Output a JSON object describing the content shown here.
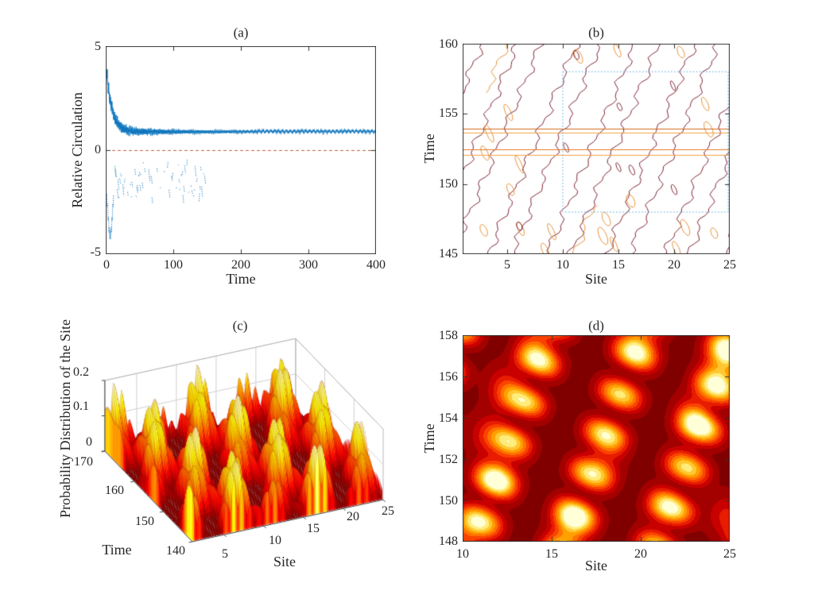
{
  "figure": {
    "background": "#ffffff",
    "axis_color": "#262626",
    "box_color": "#333333",
    "description": "Four-panel scientific figure: relative circulation time series, vortex-trajectory contour map, 3D probability-distribution surface, and filled contour zoom"
  },
  "panels": {
    "a": {
      "title": "(a)",
      "xlabel": "Time",
      "ylabel": "Relative Circulation",
      "xticks": [
        "0",
        "100",
        "200",
        "300",
        "400"
      ],
      "yticks": [
        "5",
        "0",
        "-5"
      ]
    },
    "b": {
      "title": "(b)",
      "xlabel": "Site",
      "ylabel": "Time",
      "xticks": [
        "5",
        "10",
        "15",
        "20",
        "25"
      ],
      "yticks": [
        "160",
        "155",
        "150",
        "145"
      ]
    },
    "c": {
      "title": "(c)",
      "zlabel": "Probability Distribution of the Site",
      "time_label": "Time",
      "site_label": "Site",
      "zticks": [
        "0.2",
        "0.1",
        "0"
      ],
      "time_ticks": [
        "170",
        "160",
        "150",
        "140"
      ],
      "site_ticks": [
        "5",
        "10",
        "15",
        "20",
        "25"
      ]
    },
    "d": {
      "title": "(d)",
      "xlabel": "Site",
      "ylabel": "Time",
      "xticks": [
        "10",
        "15",
        "20",
        "25"
      ],
      "yticks": [
        "158",
        "156",
        "154",
        "152",
        "150",
        "148"
      ]
    }
  },
  "chart_data": [
    {
      "id": "a",
      "type": "line",
      "title": "(a)",
      "xlabel": "Time",
      "ylabel": "Relative Circulation",
      "xlim": [
        0,
        400
      ],
      "ylim": [
        -5,
        5
      ],
      "xticks": [
        0,
        100,
        200,
        300,
        400
      ],
      "yticks": [
        -5,
        0,
        5
      ],
      "grid": false,
      "series": [
        {
          "name": "relative_circulation_upper",
          "color": "#0f76bd",
          "style": "noisy line",
          "description": "decays from ~4.2 at t=2 to a noisy plateau ~0.9 with small periodic scallops after t=200",
          "keypoints": [
            [
              2,
              4.2
            ],
            [
              6,
              3.0
            ],
            [
              12,
              1.6
            ],
            [
              20,
              1.35
            ],
            [
              50,
              1.25
            ],
            [
              100,
              1.05
            ],
            [
              150,
              0.95
            ],
            [
              200,
              0.9
            ],
            [
              300,
              0.88
            ],
            [
              400,
              0.9
            ]
          ]
        },
        {
          "name": "relative_circulation_negative_branch",
          "color": "#0f76bd",
          "style": "sparse dotted",
          "description": "initial dip from -2.3 to -4.1 over t=2-11, then sparse dotted band between -0.9 and -2.4 ending near t=160",
          "keypoints": [
            [
              2,
              -2.3
            ],
            [
              7,
              -4.1
            ],
            [
              11,
              -2.6
            ],
            [
              30,
              -1.6
            ],
            [
              80,
              -1.4
            ],
            [
              120,
              -1.3
            ],
            [
              158,
              -1.1
            ]
          ]
        }
      ],
      "reference_line": {
        "y": 0,
        "style": "dashed",
        "color": "#c0604f"
      }
    },
    {
      "id": "b",
      "type": "contour",
      "title": "(b)",
      "xlabel": "Site",
      "ylabel": "Time",
      "xlim": [
        1,
        25
      ],
      "ylim": [
        145,
        160
      ],
      "xticks": [
        5,
        10,
        15,
        20,
        25
      ],
      "yticks": [
        145,
        150,
        155,
        160
      ],
      "dark_contour_color": "#7e2433",
      "orange_contour_color": "#e6913a",
      "band_slope_sites_per_time": 0.53,
      "band_spacing_sites": 5.3,
      "band_halfwidth_sites": 1.6,
      "band_bases": [
        -3.6,
        1.7,
        7.0,
        12.3,
        17.6,
        22.9,
        28.2
      ],
      "horizontal_lines": [
        {
          "time": 153.95,
          "color": "#d2691e"
        },
        {
          "time": 153.65,
          "color": "#f0a040"
        },
        {
          "time": 152.45,
          "color": "#e07820"
        },
        {
          "time": 152.05,
          "color": "#f0a040"
        }
      ],
      "orange_blobs": [
        [
          3,
          152.2
        ],
        [
          3.4,
          153.6
        ],
        [
          5.1,
          155.1
        ],
        [
          5.3,
          149.6
        ],
        [
          6.1,
          151.4
        ],
        [
          9,
          146.6
        ],
        [
          8.4,
          145.3
        ],
        [
          13.6,
          146.3
        ],
        [
          13.9,
          147.5
        ],
        [
          14.6,
          145.7
        ],
        [
          16.1,
          148.8
        ],
        [
          21,
          146.9
        ],
        [
          20.2,
          145.4
        ],
        [
          23.1,
          153.9
        ],
        [
          22.8,
          155.7
        ],
        [
          20.6,
          159.4
        ],
        [
          14.9,
          159.5
        ],
        [
          11.4,
          159.1
        ],
        [
          23.6,
          146.5
        ],
        [
          2.9,
          146.7
        ],
        [
          6.2,
          146.8
        ]
      ],
      "dark_blobs": [
        [
          15.1,
          155.5
        ],
        [
          16.2,
          151.0
        ],
        [
          15.0,
          151.2
        ],
        [
          10.3,
          152.6
        ],
        [
          20.0,
          149.6
        ],
        [
          6.1,
          147.0
        ],
        [
          11.2,
          159.2
        ],
        [
          19.9,
          157.0
        ]
      ],
      "orange_diagonals": [
        {
          "base": -3.0,
          "t_range": [
            156.5,
            160
          ]
        },
        {
          "base": 24.0,
          "t_range": [
            151,
            157
          ]
        },
        {
          "base": -4.2,
          "t_range": [
            145,
            148
          ]
        },
        {
          "base": 11.0,
          "t_range": [
            145,
            148.5
          ]
        }
      ],
      "highlight_rect": {
        "site": [
          10,
          25
        ],
        "time": [
          148,
          158
        ],
        "color": "#4ea6dc",
        "style": "dotted"
      }
    },
    {
      "id": "c",
      "type": "surface3d",
      "title": "(c)",
      "xlabel": "Site",
      "ylabel": "Time",
      "zlabel": "Probability Distribution of the Site",
      "xlim": [
        1,
        25
      ],
      "ylim": [
        140,
        170
      ],
      "zlim": [
        0,
        0.2
      ],
      "xticks": [
        5,
        10,
        15,
        20,
        25
      ],
      "yticks": [
        140,
        150,
        160,
        170
      ],
      "zticks": [
        0,
        0.1,
        0.2
      ],
      "colormap": "hot",
      "comb_period_sites": 1.05,
      "ridge_slope_sites_per_time": 0.4,
      "ridge_spacing_sites": 5.3,
      "peak_height": 0.19,
      "wall_grid_color": "#cfcfcf"
    },
    {
      "id": "d",
      "type": "filled_contour",
      "title": "(d)",
      "xlabel": "Site",
      "ylabel": "Time",
      "xlim": [
        10,
        25
      ],
      "ylim": [
        148,
        158
      ],
      "xticks": [
        10,
        15,
        20,
        25
      ],
      "yticks": [
        148,
        150,
        152,
        154,
        156,
        158
      ],
      "colormap": "hot",
      "palette": [
        "#5a0000",
        "#800000",
        "#a30000",
        "#c80000",
        "#e81c00",
        "#fa4300",
        "#ff7300",
        "#ffa000",
        "#ffc832",
        "#ffec7a",
        "#ffffd8"
      ],
      "stripe_slope_sites_per_time": 0.42,
      "stripe_spacing_sites": 5.25,
      "stripe_phase_site": 10.6,
      "bead_period": 1.9,
      "hotspots": [
        [
          24.6,
          156.6,
          0.55
        ],
        [
          23.0,
          154.0,
          0.4
        ],
        [
          16.0,
          148.6,
          0.5
        ],
        [
          12.0,
          151.2,
          0.32
        ],
        [
          20.0,
          158.0,
          0.38
        ],
        [
          14.2,
          157.7,
          0.3
        ],
        [
          10.2,
          148.3,
          0.3
        ],
        [
          12.3,
          155.5,
          0.25
        ],
        [
          18.0,
          152.1,
          0.22
        ],
        [
          21.2,
          149.6,
          0.2
        ],
        [
          24.8,
          149.2,
          0.25
        ],
        [
          11.2,
          153.2,
          0.18
        ]
      ]
    }
  ]
}
